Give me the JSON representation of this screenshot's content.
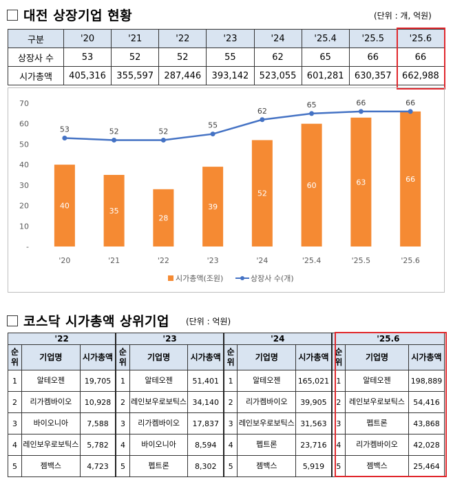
{
  "section1": {
    "title": "대전 상장기업 현황",
    "unit": "(단위 : 개, 억원)"
  },
  "table1": {
    "header": [
      "구분",
      "'20",
      "'21",
      "'22",
      "'23",
      "'24",
      "'25.4",
      "'25.5",
      "'25.6"
    ],
    "rows": [
      [
        "상장사 수",
        "53",
        "52",
        "52",
        "55",
        "62",
        "65",
        "66",
        "66"
      ],
      [
        "시가총액",
        "405,316",
        "355,597",
        "287,446",
        "393,142",
        "523,055",
        "601,281",
        "630,357",
        "662,988"
      ]
    ]
  },
  "chart_data": {
    "type": "bar",
    "categories": [
      "'20",
      "'21",
      "'22",
      "'23",
      "'24",
      "'25.4",
      "'25.5",
      "'25.6"
    ],
    "series": [
      {
        "name": "시가총액(조원)",
        "type": "bar",
        "color": "#f58a33",
        "values": [
          40,
          35,
          28,
          39,
          52,
          60,
          63,
          66
        ]
      },
      {
        "name": "상장사 수(개)",
        "type": "line",
        "color": "#4472c4",
        "values": [
          53,
          52,
          52,
          55,
          62,
          65,
          66,
          66
        ]
      }
    ],
    "y_ticks": [
      "-",
      "10",
      "20",
      "30",
      "40",
      "50",
      "60",
      "70"
    ],
    "ylim": [
      0,
      70
    ],
    "legend": "bottom",
    "grid": false
  },
  "section2": {
    "title": "코스닥 시가총액 상위기업",
    "unit": "(단위 : 억원)"
  },
  "table2": {
    "years": [
      "'22",
      "'23",
      "'24",
      "'25.6"
    ],
    "sub_rank": "순위",
    "sub_name": "기업명",
    "sub_cap": "시가총액",
    "groups": [
      {
        "rows": [
          [
            "1",
            "알테오젠",
            "19,705"
          ],
          [
            "2",
            "리가켐바이오",
            "10,928"
          ],
          [
            "3",
            "바이오니아",
            "7,588"
          ],
          [
            "4",
            "레인보우로보틱스",
            "5,782"
          ],
          [
            "5",
            "젬백스",
            "4,723"
          ]
        ]
      },
      {
        "rows": [
          [
            "1",
            "알테오젠",
            "51,401"
          ],
          [
            "2",
            "레인보우로보틱스",
            "34,140"
          ],
          [
            "3",
            "리가켐바이오",
            "17,837"
          ],
          [
            "4",
            "바이오니아",
            "8,594"
          ],
          [
            "5",
            "펩트론",
            "8,302"
          ]
        ]
      },
      {
        "rows": [
          [
            "1",
            "알테오젠",
            "165,021"
          ],
          [
            "2",
            "리가켐바이오",
            "39,905"
          ],
          [
            "3",
            "레인보우로보틱스",
            "31,563"
          ],
          [
            "4",
            "펩트론",
            "23,716"
          ],
          [
            "5",
            "젬백스",
            "5,919"
          ]
        ]
      },
      {
        "rows": [
          [
            "1",
            "알테오젠",
            "198,889"
          ],
          [
            "2",
            "레인보우로보틱스",
            "54,416"
          ],
          [
            "3",
            "펩트론",
            "43,868"
          ],
          [
            "4",
            "리가켐바이오",
            "42,028"
          ],
          [
            "5",
            "젬백스",
            "25,464"
          ]
        ]
      }
    ]
  }
}
